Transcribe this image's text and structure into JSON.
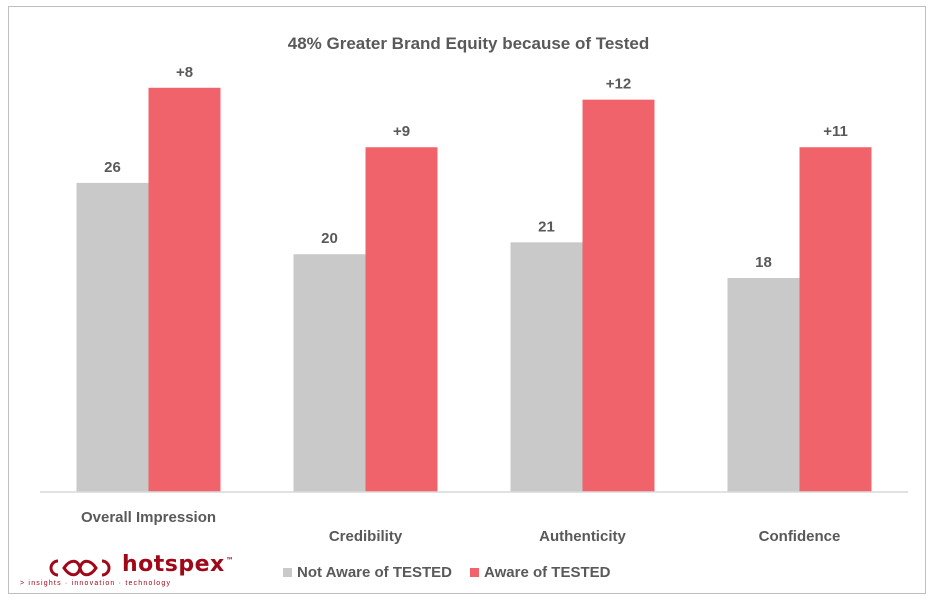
{
  "chart_data": {
    "type": "bar",
    "title": "48% Greater Brand Equity because of Tested",
    "categories": [
      "Overall Impression",
      "Credibility",
      "Authenticity",
      "Confidence"
    ],
    "series": [
      {
        "name": "Not Aware of TESTED",
        "color": "#c9c9c9",
        "values": [
          26,
          20,
          21,
          18
        ],
        "labels": [
          "26",
          "20",
          "21",
          "18"
        ]
      },
      {
        "name": "Aware of TESTED",
        "color": "#f0636b",
        "values": [
          34,
          29,
          33,
          29
        ],
        "labels": [
          "+8",
          "+9",
          "+12",
          "+11"
        ]
      }
    ],
    "ylim": [
      0,
      36
    ],
    "grid": false,
    "legend_position": "bottom"
  },
  "logo": {
    "brand": "hotspex",
    "trademark": "™",
    "tagline": "> insights · innovation · technology",
    "color": "#a0081a"
  }
}
